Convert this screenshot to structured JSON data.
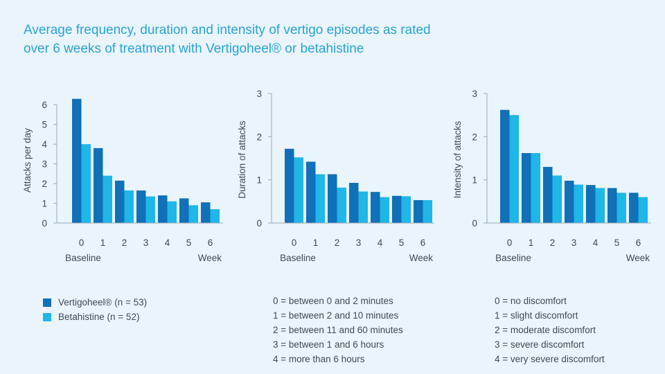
{
  "title_lines": [
    "Average frequency, duration and intensity of vertigo episodes as rated",
    "over 6 weeks of treatment with Vertigoheel® or betahistine"
  ],
  "colors": {
    "series1": "#1070b8",
    "series2": "#1fb6e8",
    "title": "#2aa3d8"
  },
  "legend": [
    {
      "label": "Vertigoheel® (n = 53)",
      "color": "#1070b8"
    },
    {
      "label": "Betahistine (n = 52)",
      "color": "#1fb6e8"
    }
  ],
  "x_text": {
    "left": "Baseline",
    "right": "Week"
  },
  "chart_data": [
    {
      "type": "bar",
      "categories": [
        "0",
        "1",
        "2",
        "3",
        "4",
        "5",
        "6"
      ],
      "ylabel": "Attacks per day",
      "ylim": [
        0,
        6.5
      ],
      "yticks": [
        "0",
        "1",
        "2",
        "3",
        "4",
        "5",
        "6"
      ],
      "series": [
        {
          "name": "Vertigoheel® (n = 53)",
          "values": [
            6.3,
            3.8,
            2.15,
            1.65,
            1.4,
            1.25,
            1.05
          ]
        },
        {
          "name": "Betahistine (n = 52)",
          "values": [
            4.0,
            2.4,
            1.65,
            1.35,
            1.1,
            0.9,
            0.7
          ]
        }
      ]
    },
    {
      "type": "bar",
      "categories": [
        "0",
        "1",
        "2",
        "3",
        "4",
        "5",
        "6"
      ],
      "ylabel": "Duration of attacks",
      "ylim": [
        0,
        3
      ],
      "yticks": [
        "0",
        "1",
        "2",
        "3"
      ],
      "series": [
        {
          "name": "Vertigoheel® (n = 53)",
          "values": [
            1.72,
            1.42,
            1.13,
            0.93,
            0.72,
            0.63,
            0.53
          ]
        },
        {
          "name": "Betahistine (n = 52)",
          "values": [
            1.52,
            1.13,
            0.82,
            0.73,
            0.6,
            0.62,
            0.53
          ]
        }
      ]
    },
    {
      "type": "bar",
      "categories": [
        "0",
        "1",
        "2",
        "3",
        "4",
        "5",
        "6"
      ],
      "ylabel": "Intensity of attacks",
      "ylim": [
        0,
        3
      ],
      "yticks": [
        "0",
        "1",
        "2",
        "3"
      ],
      "series": [
        {
          "name": "Vertigoheel® (n = 53)",
          "values": [
            2.62,
            1.62,
            1.3,
            0.98,
            0.88,
            0.81,
            0.7
          ]
        },
        {
          "name": "Betahistine (n = 52)",
          "values": [
            2.5,
            1.62,
            1.1,
            0.89,
            0.81,
            0.7,
            0.6
          ]
        }
      ]
    }
  ],
  "duration_notes": [
    "0 = between 0 and 2 minutes",
    "1 = between 2 and 10 minutes",
    "2 = between 11 and 60 minutes",
    "3 = between 1 and 6 hours",
    "4 = more than 6 hours"
  ],
  "intensity_notes": [
    "0 = no discomfort",
    "1 = slight discomfort",
    "2 = moderate discomfort",
    "3 = severe discomfort",
    "4 = very severe discomfort"
  ]
}
